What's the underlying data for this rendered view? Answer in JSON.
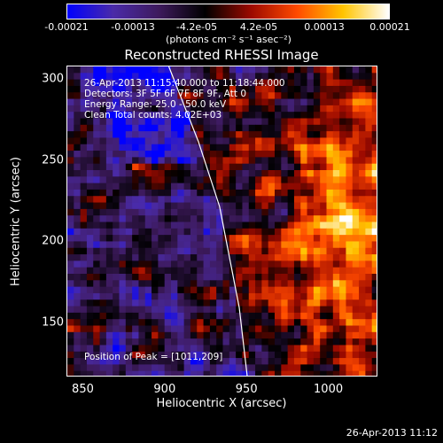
{
  "colorbar": {
    "ticks": [
      "-0.00021",
      "-0.00013",
      "-4.2e-05",
      "4.2e-05",
      "0.00013",
      "0.00021"
    ],
    "units": "(photons cm⁻² s⁻¹ asec⁻²)",
    "colors": [
      "#0000ff",
      "#4a2ba8",
      "#3d1a5c",
      "#000000",
      "#9c0a00",
      "#ff4a00",
      "#ffc400",
      "#ffffff"
    ]
  },
  "chart_data": {
    "type": "heatmap",
    "title": "Reconstructed RHESSI Image",
    "xlabel": "Heliocentric X (arcsec)",
    "ylabel": "Heliocentric Y (arcsec)",
    "xlim": [
      840,
      1030
    ],
    "ylim": [
      117,
      308
    ],
    "xticks": [
      "850",
      "900",
      "950",
      "1000"
    ],
    "yticks": [
      "150",
      "200",
      "250",
      "300"
    ],
    "zlim": [
      -0.00021,
      0.00021
    ],
    "peak": [
      1011,
      209
    ],
    "limb": [
      [
        902,
        308
      ],
      [
        920,
        262
      ],
      [
        933,
        222
      ],
      [
        945,
        160
      ],
      [
        950,
        117
      ]
    ]
  },
  "annotations": [
    "26-Apr-2013 11:15:40.000 to 11:18:44.000",
    "Detectors: 3F 5F 6F 7F 8F 9F, Att 0",
    "Energy Range: 25.0 - 50.0 keV",
    "Clean    Total counts: 4.02E+03"
  ],
  "peak_label": "Position of Peak = [1011,209]",
  "footer_timestamp": "26-Apr-2013 11:12"
}
